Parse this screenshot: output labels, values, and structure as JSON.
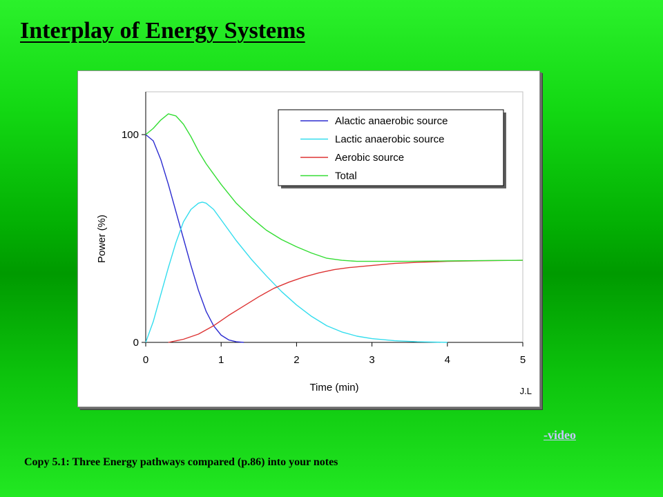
{
  "slide": {
    "title": "Interplay of Energy Systems",
    "video_link": "-video",
    "caption": "Copy 5.1: Three Energy pathways compared (p.86) into your notes"
  },
  "chart_data": {
    "type": "line",
    "title": "",
    "xlabel": "Time (min)",
    "ylabel": "Power (%)",
    "xlim": [
      0,
      5
    ],
    "ylim": [
      0,
      120
    ],
    "xticks": [
      0,
      1,
      2,
      3,
      4,
      5
    ],
    "yticks": [
      0,
      100
    ],
    "grid": false,
    "legend_position": "top-right",
    "annotation": "J.L",
    "colors": {
      "background": "#ffffff",
      "plot_border": "#c0c0c0",
      "legend_shadow": "#606060"
    },
    "series": [
      {
        "name": "Alactic anaerobic source",
        "color": "#2b2bd0",
        "points": [
          [
            0,
            100
          ],
          [
            0.1,
            97
          ],
          [
            0.2,
            88
          ],
          [
            0.3,
            76
          ],
          [
            0.4,
            63
          ],
          [
            0.5,
            50
          ],
          [
            0.6,
            37
          ],
          [
            0.7,
            25
          ],
          [
            0.8,
            15
          ],
          [
            0.9,
            8
          ],
          [
            1.0,
            3.5
          ],
          [
            1.1,
            1.2
          ],
          [
            1.2,
            0.3
          ],
          [
            1.3,
            0
          ]
        ]
      },
      {
        "name": "Lactic anaerobic source",
        "color": "#33ddee",
        "points": [
          [
            0,
            0
          ],
          [
            0.1,
            10
          ],
          [
            0.2,
            23
          ],
          [
            0.3,
            36
          ],
          [
            0.4,
            48
          ],
          [
            0.5,
            58
          ],
          [
            0.6,
            64
          ],
          [
            0.7,
            67
          ],
          [
            0.75,
            67.5
          ],
          [
            0.8,
            67
          ],
          [
            0.9,
            64
          ],
          [
            1.0,
            59
          ],
          [
            1.2,
            49
          ],
          [
            1.4,
            40
          ],
          [
            1.6,
            32
          ],
          [
            1.8,
            24.5
          ],
          [
            2.0,
            18
          ],
          [
            2.2,
            12.5
          ],
          [
            2.4,
            8
          ],
          [
            2.6,
            5
          ],
          [
            2.8,
            3
          ],
          [
            3.0,
            1.8
          ],
          [
            3.3,
            0.8
          ],
          [
            3.6,
            0.3
          ],
          [
            4.0,
            0
          ]
        ]
      },
      {
        "name": "Aerobic source",
        "color": "#dd3333",
        "points": [
          [
            0.3,
            0
          ],
          [
            0.5,
            1.5
          ],
          [
            0.7,
            4
          ],
          [
            0.9,
            8
          ],
          [
            1.1,
            13
          ],
          [
            1.3,
            17.5
          ],
          [
            1.5,
            22
          ],
          [
            1.7,
            26
          ],
          [
            1.9,
            29
          ],
          [
            2.1,
            31.5
          ],
          [
            2.3,
            33.5
          ],
          [
            2.5,
            35
          ],
          [
            2.7,
            36
          ],
          [
            3.0,
            37
          ],
          [
            3.3,
            38
          ],
          [
            3.6,
            38.5
          ],
          [
            4.0,
            39
          ],
          [
            4.5,
            39.3
          ],
          [
            5.0,
            39.5
          ]
        ]
      },
      {
        "name": "Total",
        "color": "#33dd33",
        "points": [
          [
            0,
            100
          ],
          [
            0.1,
            103
          ],
          [
            0.2,
            107
          ],
          [
            0.3,
            110
          ],
          [
            0.4,
            109
          ],
          [
            0.5,
            105
          ],
          [
            0.6,
            99
          ],
          [
            0.7,
            92
          ],
          [
            0.8,
            86
          ],
          [
            0.9,
            81
          ],
          [
            1.0,
            76
          ],
          [
            1.2,
            67
          ],
          [
            1.4,
            60
          ],
          [
            1.6,
            54
          ],
          [
            1.8,
            49.5
          ],
          [
            2.0,
            46
          ],
          [
            2.2,
            43
          ],
          [
            2.4,
            40.5
          ],
          [
            2.6,
            39.5
          ],
          [
            2.8,
            39
          ],
          [
            3.0,
            39
          ],
          [
            3.5,
            39
          ],
          [
            4.0,
            39.2
          ],
          [
            4.5,
            39.4
          ],
          [
            5.0,
            39.5
          ]
        ]
      }
    ]
  }
}
